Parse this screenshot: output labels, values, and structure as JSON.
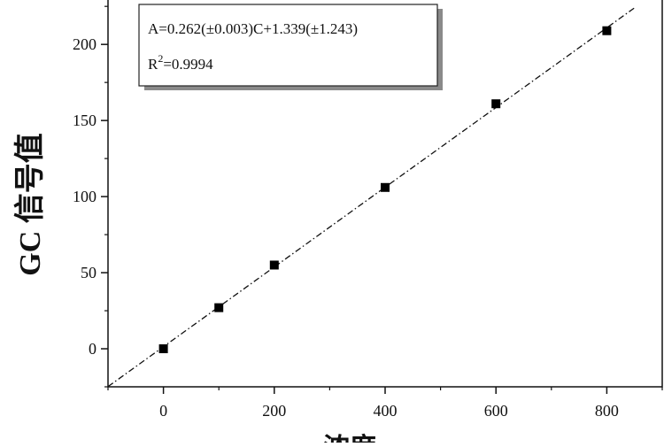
{
  "chart_data": {
    "type": "scatter",
    "ylabel": "GC 信号值",
    "xlabel": "浓度",
    "xlim": [
      -100,
      900
    ],
    "ylim": [
      -25,
      235
    ],
    "xticks": [
      0,
      200,
      400,
      600,
      800
    ],
    "yticks": [
      0,
      50,
      100,
      150,
      200
    ],
    "grid": false,
    "series": [
      {
        "marker": "square",
        "points": [
          {
            "x": 0,
            "y": 0
          },
          {
            "x": 100,
            "y": 27
          },
          {
            "x": 200,
            "y": 55
          },
          {
            "x": 400,
            "y": 106
          },
          {
            "x": 600,
            "y": 161
          },
          {
            "x": 800,
            "y": 209
          }
        ]
      }
    ],
    "fit_line": {
      "style": "dash-dot",
      "slope": 0.262,
      "intercept": 1.339,
      "x_range": [
        -100,
        850
      ]
    },
    "annotation": {
      "equation": "A=0.262(±0.003)C+1.339(±1.243)",
      "r2_label": "R",
      "r2_power": "2",
      "r2_value": "=0.9994"
    }
  }
}
